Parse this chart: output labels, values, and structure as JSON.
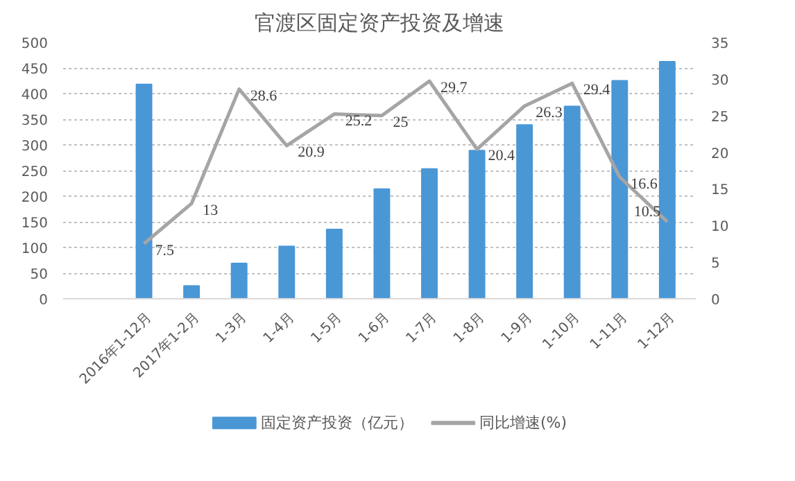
{
  "chart_data": {
    "type": "bar",
    "title": "官渡区固定资产投资及增速",
    "categories": [
      "2016年1-12月",
      "2017年1-2月",
      "1-3月",
      "1-4月",
      "1-5月",
      "1-6月",
      "1-7月",
      "1-8月",
      "1-9月",
      "1-10月",
      "1-11月",
      "1-12月"
    ],
    "series": [
      {
        "name": "固定资产投资（亿元）",
        "color": "#4a97d6",
        "values": [
          418,
          25,
          69,
          102,
          135,
          214,
          253,
          289,
          339,
          375,
          425,
          462
        ]
      },
      {
        "name": "同比增速(%)",
        "type": "line",
        "axis": "y2",
        "color": "#a5a5a5",
        "values": [
          7.5,
          13,
          28.6,
          20.9,
          25.2,
          25,
          29.7,
          20.4,
          26.3,
          29.4,
          16.6,
          10.5
        ],
        "value_labels": [
          "7.5",
          "13",
          "28.6",
          "20.9",
          "25.2",
          "25",
          "29.7",
          "20.4",
          "26.3",
          "29.4",
          "16.6",
          "10.5"
        ]
      }
    ],
    "ylim": [
      0,
      500
    ],
    "yticks": [
      0,
      50,
      100,
      150,
      200,
      250,
      300,
      350,
      400,
      450,
      500
    ],
    "y2lim": [
      0,
      35
    ],
    "y2ticks": [
      0,
      5,
      10,
      15,
      20,
      25,
      30,
      35
    ],
    "grid": "y",
    "legend": "bottom"
  }
}
